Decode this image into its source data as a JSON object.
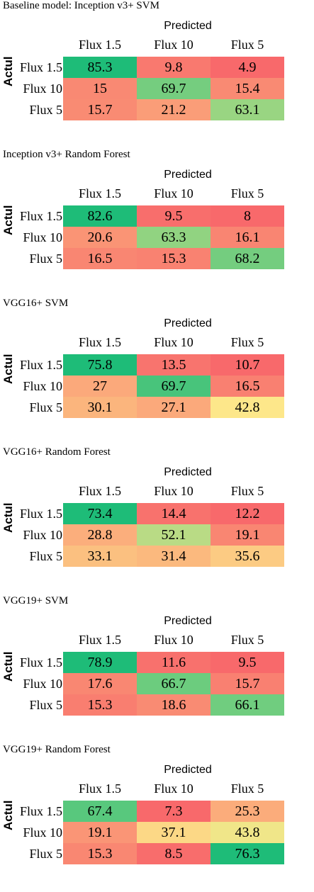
{
  "chart_data": [
    {
      "type": "heatmap",
      "title": "Baseline model: Inception v3+ SVM",
      "xlabel": "Predicted",
      "ylabel": "Actul",
      "x_categories": [
        "Flux 1.5",
        "Flux 10",
        "Flux 5"
      ],
      "y_categories": [
        "Flux 1.5",
        "Flux 10",
        "Flux 5"
      ],
      "values": [
        [
          85.3,
          9.8,
          4.9
        ],
        [
          15,
          69.7,
          15.4
        ],
        [
          15.7,
          21.2,
          63.1
        ]
      ],
      "labels": [
        [
          "85.3",
          "9.8",
          "4.9"
        ],
        [
          "15",
          "69.7",
          "15.4"
        ],
        [
          "15.7",
          "21.2",
          "63.1"
        ]
      ]
    },
    {
      "type": "heatmap",
      "title": "Inception v3+ Random Forest",
      "xlabel": "Predicted",
      "ylabel": "Actul",
      "x_categories": [
        "Flux 1.5",
        "Flux 10",
        "Flux 5"
      ],
      "y_categories": [
        "Flux 1.5",
        "Flux 10",
        "Flux 5"
      ],
      "values": [
        [
          82.6,
          9.5,
          8
        ],
        [
          20.6,
          63.3,
          16.1
        ],
        [
          16.5,
          15.3,
          68.2
        ]
      ],
      "labels": [
        [
          "82.6",
          "9.5",
          "8"
        ],
        [
          "20.6",
          "63.3",
          "16.1"
        ],
        [
          "16.5",
          "15.3",
          "68.2"
        ]
      ]
    },
    {
      "type": "heatmap",
      "title": "VGG16+ SVM",
      "xlabel": "Predicted",
      "ylabel": "Actul",
      "x_categories": [
        "Flux 1.5",
        "Flux 10",
        "Flux 5"
      ],
      "y_categories": [
        "Flux 1.5",
        "Flux 10",
        "Flux 5"
      ],
      "values": [
        [
          75.8,
          13.5,
          10.7
        ],
        [
          27,
          69.7,
          16.5
        ],
        [
          30.1,
          27.1,
          42.8
        ]
      ],
      "labels": [
        [
          "75.8",
          "13.5",
          "10.7"
        ],
        [
          "27",
          "69.7",
          "16.5"
        ],
        [
          "30.1",
          "27.1",
          "42.8"
        ]
      ]
    },
    {
      "type": "heatmap",
      "title": "VGG16+ Random Forest",
      "xlabel": "Predicted",
      "ylabel": "Actul",
      "x_categories": [
        "Flux 1.5",
        "Flux 10",
        "Flux 5"
      ],
      "y_categories": [
        "Flux 1.5",
        "Flux 10",
        "Flux 5"
      ],
      "values": [
        [
          73.4,
          14.4,
          12.2
        ],
        [
          28.8,
          52.1,
          19.1
        ],
        [
          33.1,
          31.4,
          35.6
        ]
      ],
      "labels": [
        [
          "73.4",
          "14.4",
          "12.2"
        ],
        [
          "28.8",
          "52.1",
          "19.1"
        ],
        [
          "33.1",
          "31.4",
          "35.6"
        ]
      ]
    },
    {
      "type": "heatmap",
      "title": "VGG19+ SVM",
      "xlabel": "Predicted",
      "ylabel": "Actul",
      "x_categories": [
        "Flux 1.5",
        "Flux 10",
        "Flux 5"
      ],
      "y_categories": [
        "Flux 1.5",
        "Flux 10",
        "Flux 5"
      ],
      "values": [
        [
          78.9,
          11.6,
          9.5
        ],
        [
          17.6,
          66.7,
          15.7
        ],
        [
          15.3,
          18.6,
          66.1
        ]
      ],
      "labels": [
        [
          "78.9",
          "11.6",
          "9.5"
        ],
        [
          "17.6",
          "66.7",
          "15.7"
        ],
        [
          "15.3",
          "18.6",
          "66.1"
        ]
      ]
    },
    {
      "type": "heatmap",
      "title": "VGG19+ Random Forest",
      "xlabel": "Predicted",
      "ylabel": "Actul",
      "x_categories": [
        "Flux 1.5",
        "Flux 10",
        "Flux 5"
      ],
      "y_categories": [
        "Flux 1.5",
        "Flux 10",
        "Flux 5"
      ],
      "values": [
        [
          67.4,
          7.3,
          25.3
        ],
        [
          19.1,
          37.1,
          43.8
        ],
        [
          15.3,
          8.5,
          76.3
        ]
      ],
      "labels": [
        [
          "67.4",
          "7.3",
          "25.3"
        ],
        [
          "19.1",
          "37.1",
          "43.8"
        ],
        [
          "15.3",
          "8.5",
          "76.3"
        ]
      ]
    }
  ],
  "colors": {
    "high": "#1ebc78",
    "mid": "#fde98a",
    "low": "#f8696b"
  }
}
